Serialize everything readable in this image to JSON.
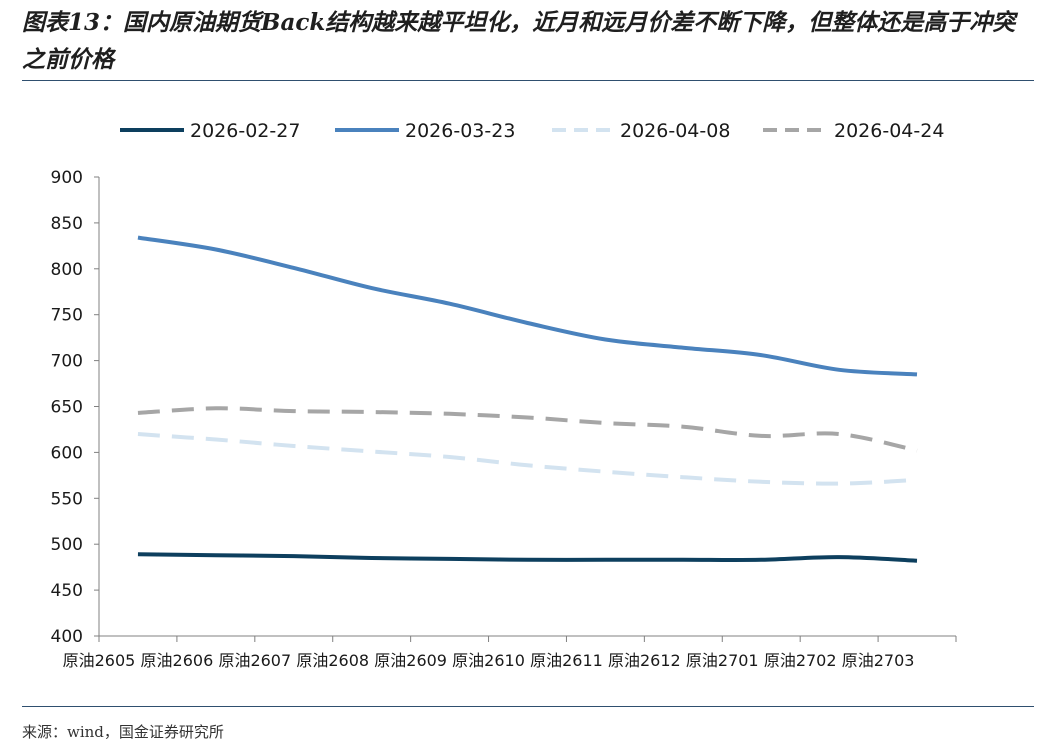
{
  "figure": {
    "title": "图表13：国内原油期货Back结构越来越平坦化，近月和远月价差不断下降，但整体还是高于冲突之前价格",
    "source": "来源：wind，国金证券研究所"
  },
  "chart_data": {
    "type": "line",
    "categories": [
      "原油2605",
      "原油2606",
      "原油2607",
      "原油2608",
      "原油2609",
      "原油2610",
      "原油2611",
      "原油2612",
      "原油2701",
      "原油2702",
      "原油2703"
    ],
    "ylim": [
      400,
      900
    ],
    "yticks": [
      400,
      450,
      500,
      550,
      600,
      650,
      700,
      750,
      800,
      850,
      900
    ],
    "grid": false,
    "legend_position": "top",
    "series": [
      {
        "name": "2026-02-27",
        "color": "#0d3f5e",
        "style": "solid",
        "values": [
          489,
          488,
          487,
          485,
          484,
          483,
          483,
          483,
          483,
          486,
          482
        ]
      },
      {
        "name": "2026-03-23",
        "color": "#4a82bd",
        "style": "solid",
        "values": [
          834,
          821,
          801,
          779,
          762,
          741,
          723,
          714,
          706,
          690,
          685
        ]
      },
      {
        "name": "2026-04-08",
        "color": "#d3e3f0",
        "style": "dashed",
        "values": [
          620,
          614,
          607,
          601,
          595,
          586,
          579,
          573,
          568,
          566,
          570
        ]
      },
      {
        "name": "2026-04-24",
        "color": "#a6a6a6",
        "style": "dashed",
        "values": [
          643,
          648,
          645,
          644,
          642,
          638,
          632,
          628,
          618,
          620,
          602
        ]
      }
    ]
  }
}
